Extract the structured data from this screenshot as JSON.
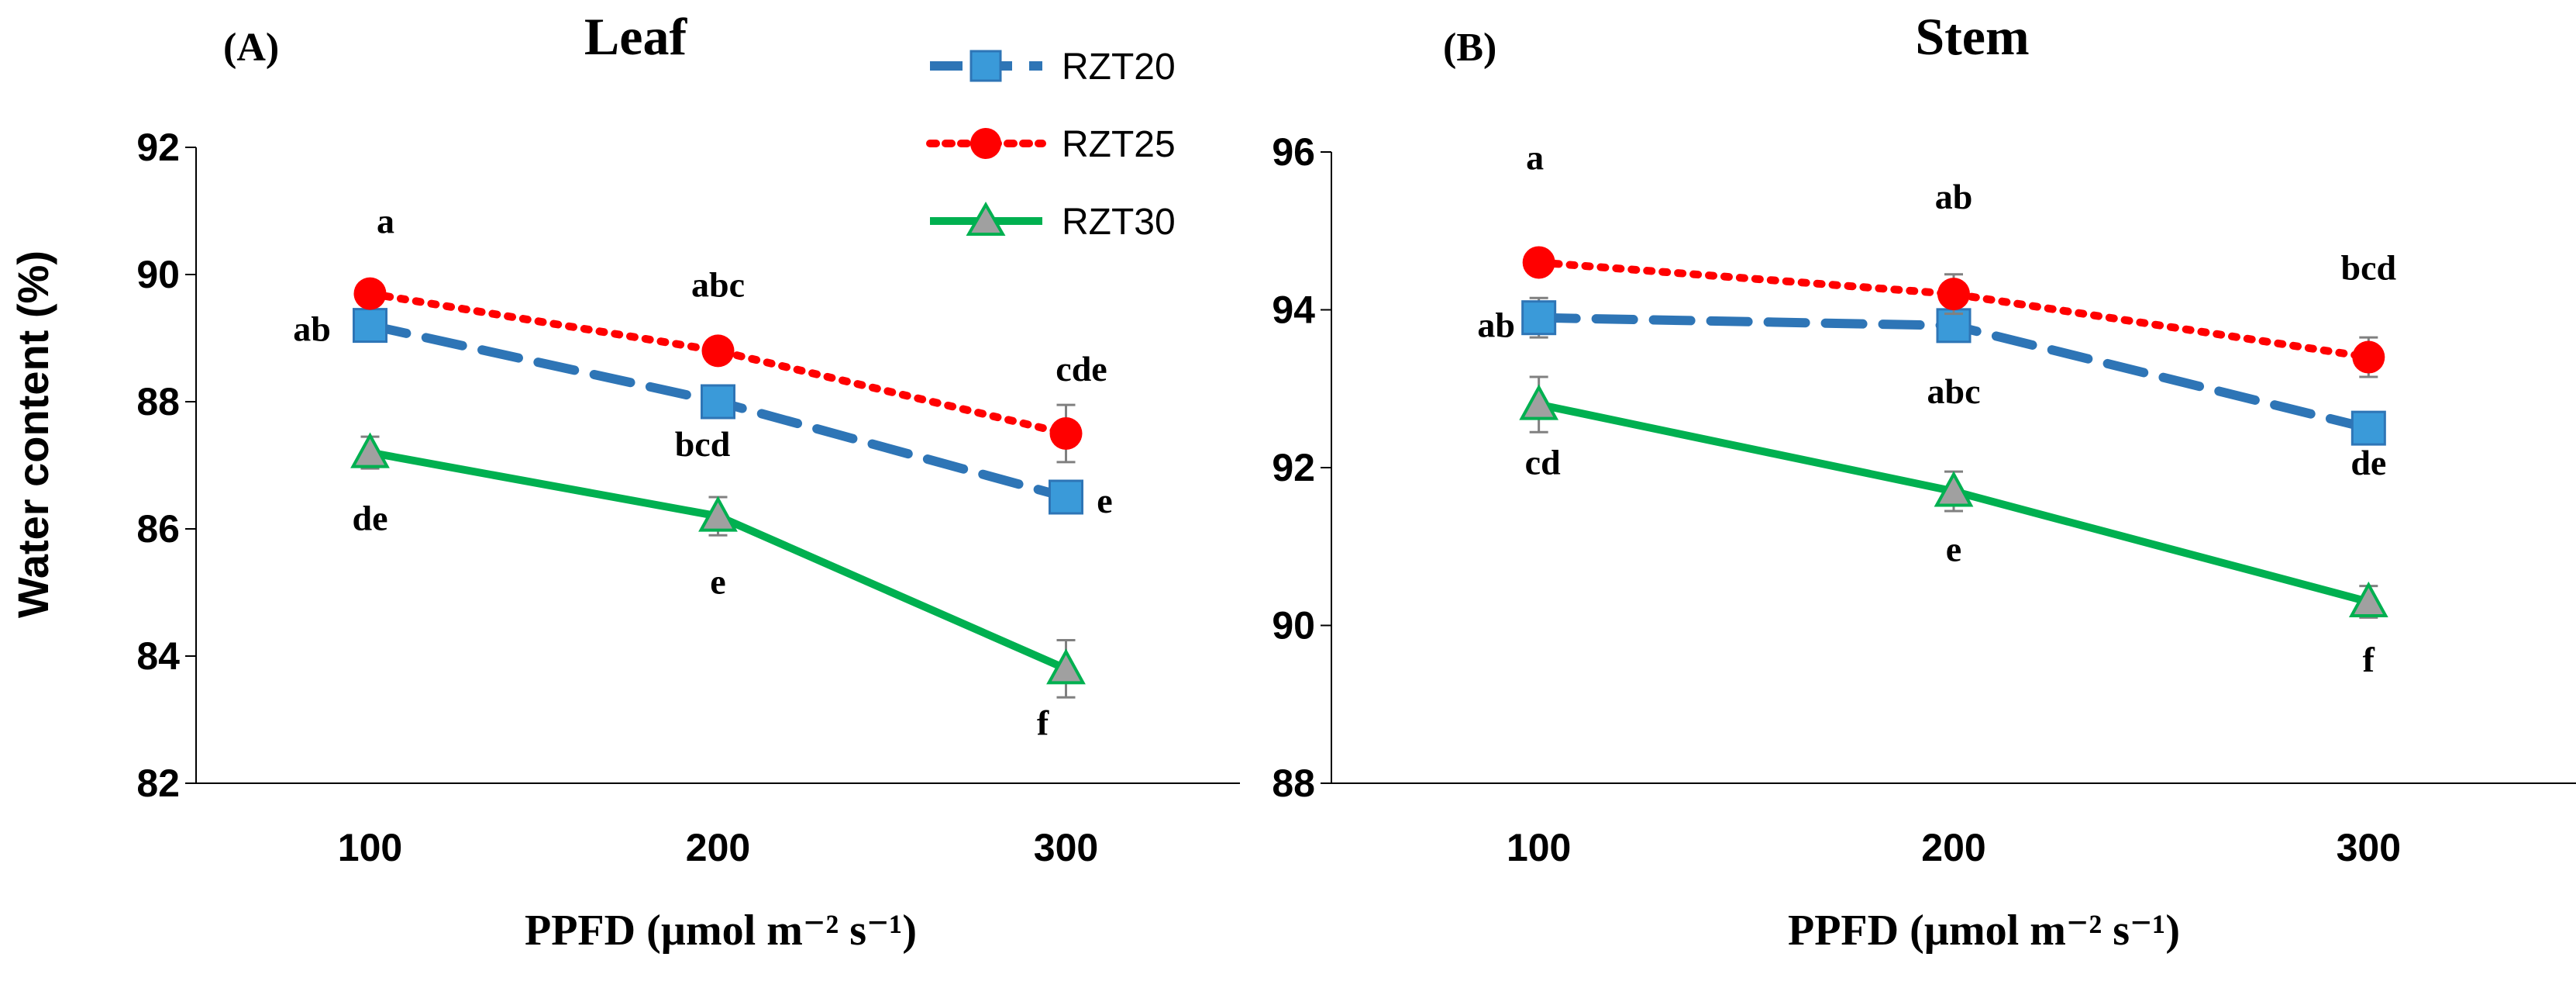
{
  "chart_data": [
    {
      "type": "line",
      "panel_label": "(A)",
      "title": "Leaf",
      "xlabel": "PPFD (µmol m⁻² s⁻¹)",
      "ylabel": "Water content (%)",
      "x": [
        100,
        200,
        300
      ],
      "x_tick_labels": [
        "100",
        "200",
        "300"
      ],
      "xlim": [
        50,
        350
      ],
      "ylim": [
        82,
        92
      ],
      "y_ticks": [
        82,
        84,
        86,
        88,
        90,
        92
      ],
      "y_tick_labels": [
        "82",
        "84",
        "86",
        "88",
        "90",
        "92"
      ],
      "series": [
        {
          "name": "RZT20",
          "values": [
            89.2,
            88.0,
            86.5
          ],
          "errors": [
            0.2,
            0.2,
            0.2
          ],
          "letters": [
            "ab",
            "bcd",
            "e"
          ]
        },
        {
          "name": "RZT25",
          "values": [
            89.7,
            88.8,
            87.5
          ],
          "errors": [
            0.15,
            0.15,
            0.45
          ],
          "letters": [
            "a",
            "abc",
            "cde"
          ]
        },
        {
          "name": "RZT30",
          "values": [
            87.2,
            86.2,
            83.8
          ],
          "errors": [
            0.25,
            0.3,
            0.45
          ],
          "letters": [
            "de",
            "e",
            "f"
          ]
        }
      ]
    },
    {
      "type": "line",
      "panel_label": "(B)",
      "title": "Stem",
      "xlabel": "PPFD (µmol m⁻² s⁻¹)",
      "x": [
        100,
        200,
        300
      ],
      "x_tick_labels": [
        "100",
        "200",
        "300"
      ],
      "xlim": [
        50,
        350
      ],
      "ylim": [
        88,
        96
      ],
      "y_ticks": [
        88,
        90,
        92,
        94,
        96
      ],
      "y_tick_labels": [
        "88",
        "90",
        "92",
        "94",
        "96"
      ],
      "series": [
        {
          "name": "RZT20",
          "values": [
            93.9,
            93.8,
            92.5
          ],
          "errors": [
            0.25,
            0.1,
            0.1
          ],
          "letters": [
            "ab",
            "abc",
            "de"
          ]
        },
        {
          "name": "RZT25",
          "values": [
            94.6,
            94.2,
            93.4
          ],
          "errors": [
            0.1,
            0.25,
            0.25
          ],
          "letters": [
            "a",
            "ab",
            "bcd"
          ]
        },
        {
          "name": "RZT30",
          "values": [
            92.8,
            91.7,
            90.3
          ],
          "errors": [
            0.35,
            0.25,
            0.2
          ],
          "letters": [
            "cd",
            "e",
            "f"
          ]
        }
      ]
    }
  ],
  "legend": {
    "placement": "top-center",
    "entries": [
      "RZT20",
      "RZT25",
      "RZT30"
    ]
  },
  "colors": {
    "RZT20": "#2E75B6",
    "RZT20_marker": "#3A9AD9",
    "RZT25": "#FF0000",
    "RZT30": "#00B050",
    "RZT30_marker": "#A0A0A0",
    "errorbar": "#808080",
    "axis": "#000000"
  }
}
